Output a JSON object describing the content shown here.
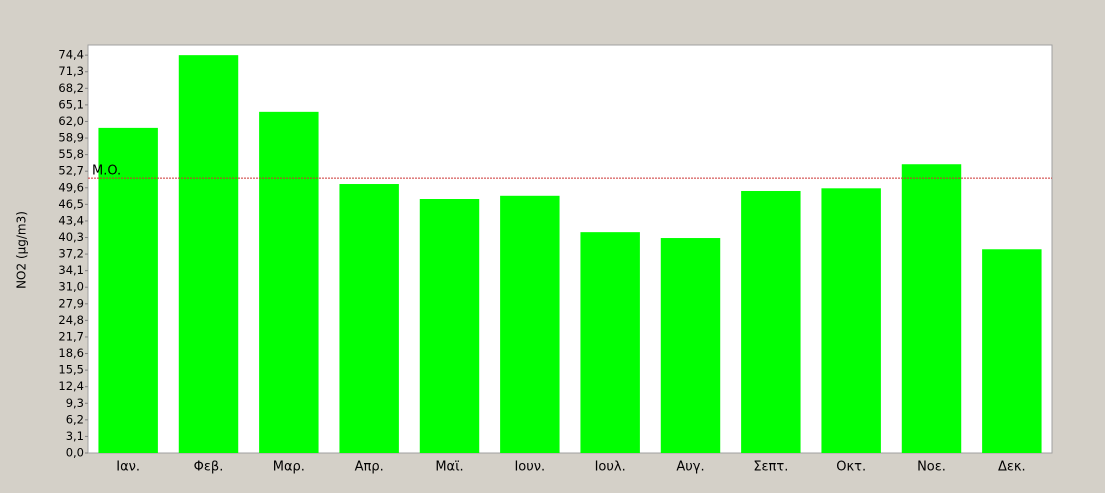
{
  "chart_data": {
    "type": "bar",
    "y_label": "NO2 (μg/m3)",
    "categories": [
      "Ιαν.",
      "Φεβ.",
      "Μαρ.",
      "Απρ.",
      "Μαϊ.",
      "Ιουν.",
      "Ιουλ.",
      "Αυγ.",
      "Σεπτ.",
      "Οκτ.",
      "Νοε.",
      "Δεκ."
    ],
    "values": [
      60.8,
      74.4,
      63.8,
      50.3,
      47.5,
      48.1,
      41.3,
      40.2,
      49.0,
      49.5,
      54.0,
      38.1
    ],
    "color": "#00ff00",
    "ylim": [
      0,
      76.3
    ],
    "yticks": [
      {
        "value": 0,
        "label": "0,0"
      },
      {
        "value": 3.1,
        "label": "3,1"
      },
      {
        "value": 6.2,
        "label": "6,2"
      },
      {
        "value": 9.3,
        "label": "9,3"
      },
      {
        "value": 12.4,
        "label": "12,4"
      },
      {
        "value": 15.5,
        "label": "15,5"
      },
      {
        "value": 18.6,
        "label": "18,6"
      },
      {
        "value": 21.7,
        "label": "21,7"
      },
      {
        "value": 24.8,
        "label": "24,8"
      },
      {
        "value": 27.9,
        "label": "27,9"
      },
      {
        "value": 31.0,
        "label": "31,0"
      },
      {
        "value": 34.1,
        "label": "34,1"
      },
      {
        "value": 37.2,
        "label": "37,2"
      },
      {
        "value": 40.3,
        "label": "40,3"
      },
      {
        "value": 43.4,
        "label": "43,4"
      },
      {
        "value": 46.5,
        "label": "46,5"
      },
      {
        "value": 49.6,
        "label": "49,6"
      },
      {
        "value": 52.7,
        "label": "52,7"
      },
      {
        "value": 55.8,
        "label": "55,8"
      },
      {
        "value": 58.9,
        "label": "58,9"
      },
      {
        "value": 62.0,
        "label": "62,0"
      },
      {
        "value": 65.1,
        "label": "65,1"
      },
      {
        "value": 68.2,
        "label": "68,2"
      },
      {
        "value": 71.3,
        "label": "71,3"
      },
      {
        "value": 74.4,
        "label": "74,4"
      }
    ],
    "reference_line": {
      "label": "M.O.",
      "value": 51.4,
      "color": "#cc3333"
    }
  }
}
